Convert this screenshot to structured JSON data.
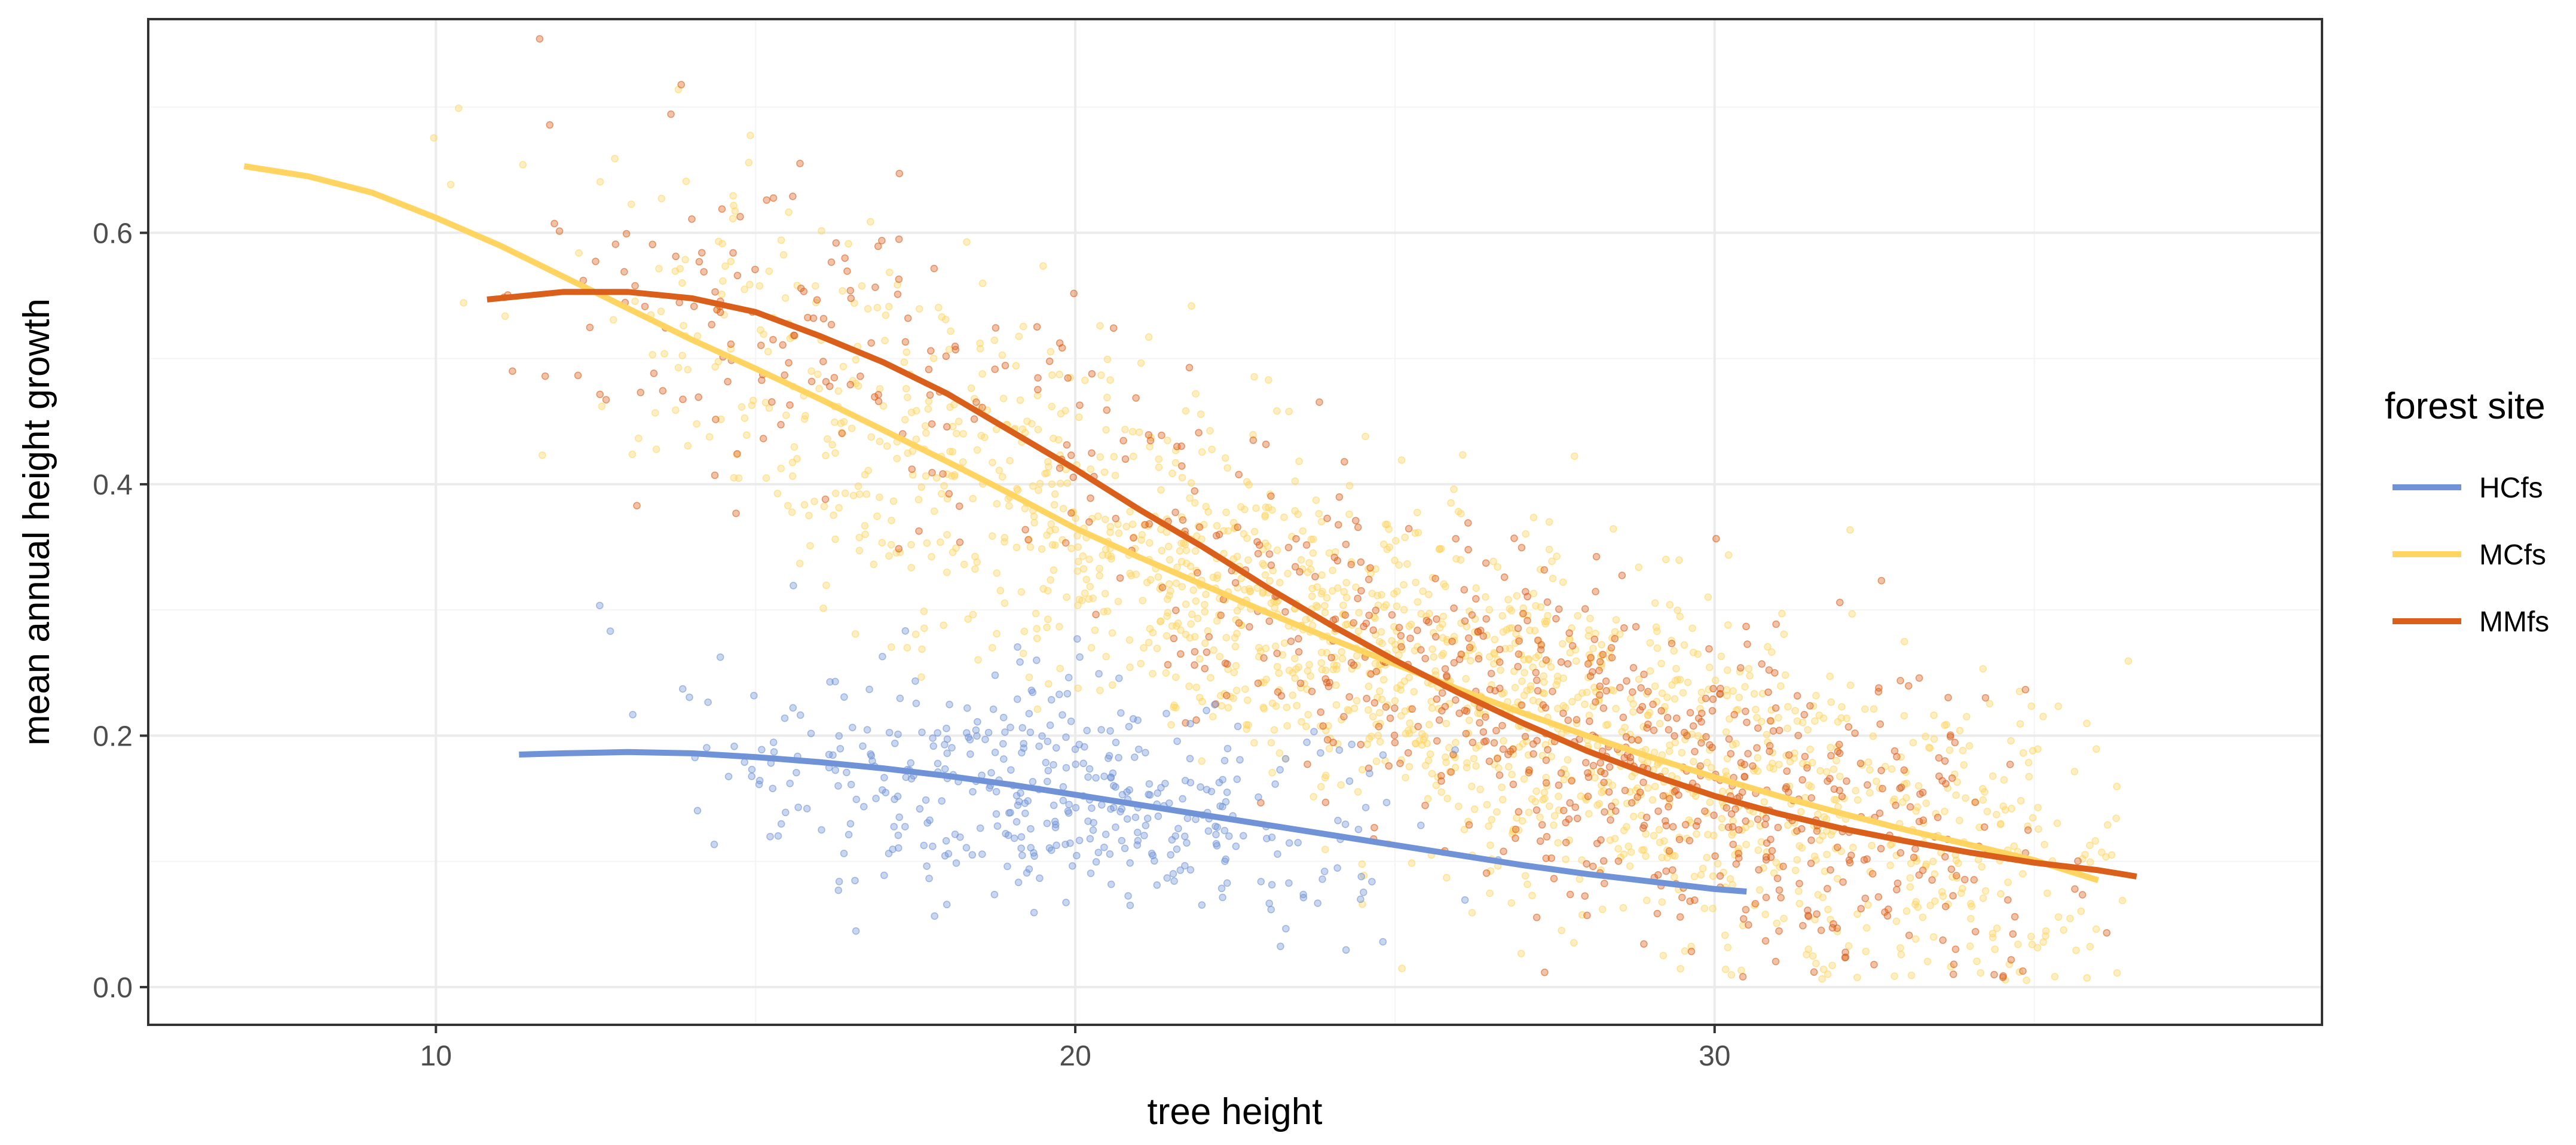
{
  "chart_data": {
    "type": "scatter",
    "title": "",
    "xlabel": "tree height",
    "ylabel": "mean annual height growth",
    "xlim": [
      5.5,
      39.5
    ],
    "ylim": [
      -0.03,
      0.77
    ],
    "x_ticks": [
      10,
      20,
      30
    ],
    "x_tick_labels": [
      "10",
      "20",
      "30"
    ],
    "y_ticks": [
      0.0,
      0.2,
      0.4,
      0.6
    ],
    "y_tick_labels": [
      "0.0",
      "0.2",
      "0.4",
      "0.6"
    ],
    "grid": true,
    "legend": {
      "title": "forest site",
      "position": "right",
      "entries": [
        "HCfs",
        "MCfs",
        "MMfs"
      ]
    },
    "colors": {
      "HCfs": "#6f93d6",
      "MCfs": "#ffd460",
      "MMfs": "#d95f1a",
      "panel_border": "#333333",
      "grid_major": "#ebebeb",
      "grid_minor": "#f4f4f4",
      "tick_text": "#4d4d4d"
    },
    "series": [
      {
        "name": "MCfs",
        "points_summary": {
          "count": 1800,
          "x_range": [
            7,
            36.5
          ],
          "clusters": [
            {
              "x_mean": 16.5,
              "x_sd": 2.5,
              "n": 260
            },
            {
              "x_mean": 22.5,
              "x_sd": 3.0,
              "n": 650
            },
            {
              "x_mean": 28.5,
              "x_sd": 3.0,
              "n": 720
            },
            {
              "x_mean": 33.5,
              "x_sd": 1.7,
              "n": 170
            }
          ],
          "y_sd": 0.07
        },
        "smooth": {
          "x": [
            7,
            8,
            9,
            10,
            11,
            12,
            13,
            14,
            15,
            16,
            17,
            18,
            19,
            20,
            21,
            22,
            23,
            24,
            25,
            26,
            27,
            28,
            29,
            30,
            31,
            32,
            33,
            34,
            35,
            36
          ],
          "y": [
            0.653,
            0.645,
            0.632,
            0.612,
            0.59,
            0.565,
            0.54,
            0.515,
            0.492,
            0.468,
            0.443,
            0.418,
            0.392,
            0.365,
            0.342,
            0.32,
            0.298,
            0.277,
            0.257,
            0.237,
            0.218,
            0.2,
            0.183,
            0.167,
            0.152,
            0.138,
            0.125,
            0.113,
            0.101,
            0.085
          ]
        }
      },
      {
        "name": "MMfs",
        "points_summary": {
          "count": 850,
          "x_range": [
            10.5,
            36.5
          ],
          "clusters": [
            {
              "x_mean": 15.5,
              "x_sd": 2.2,
              "n": 130
            },
            {
              "x_mean": 24.0,
              "x_sd": 3.0,
              "n": 260
            },
            {
              "x_mean": 30.0,
              "x_sd": 2.5,
              "n": 460
            }
          ],
          "y_sd": 0.065
        },
        "smooth": {
          "x": [
            10.8,
            11,
            12,
            13,
            14,
            15,
            16,
            17,
            18,
            19,
            20,
            21,
            22,
            23,
            24,
            25,
            26,
            27,
            28,
            29,
            30,
            31,
            32,
            33,
            34,
            35,
            36,
            36.6
          ],
          "y": [
            0.547,
            0.548,
            0.553,
            0.553,
            0.548,
            0.537,
            0.518,
            0.497,
            0.472,
            0.442,
            0.412,
            0.38,
            0.35,
            0.318,
            0.288,
            0.26,
            0.234,
            0.21,
            0.188,
            0.169,
            0.152,
            0.138,
            0.126,
            0.116,
            0.107,
            0.099,
            0.093,
            0.088
          ]
        }
      },
      {
        "name": "HCfs",
        "points_summary": {
          "count": 430,
          "x_range": [
            11.3,
            30.5
          ],
          "clusters": [
            {
              "x_mean": 19.5,
              "x_sd": 2.6,
              "n": 430
            }
          ],
          "y_sd": 0.045
        },
        "smooth": {
          "x": [
            11.3,
            12,
            13,
            14,
            15,
            16,
            17,
            18,
            19,
            20,
            21,
            22,
            23,
            24,
            25,
            26,
            27,
            28,
            29,
            30,
            30.5
          ],
          "y": [
            0.185,
            0.186,
            0.187,
            0.186,
            0.183,
            0.179,
            0.174,
            0.168,
            0.161,
            0.153,
            0.145,
            0.137,
            0.129,
            0.121,
            0.113,
            0.105,
            0.097,
            0.09,
            0.084,
            0.078,
            0.076
          ]
        }
      }
    ]
  }
}
